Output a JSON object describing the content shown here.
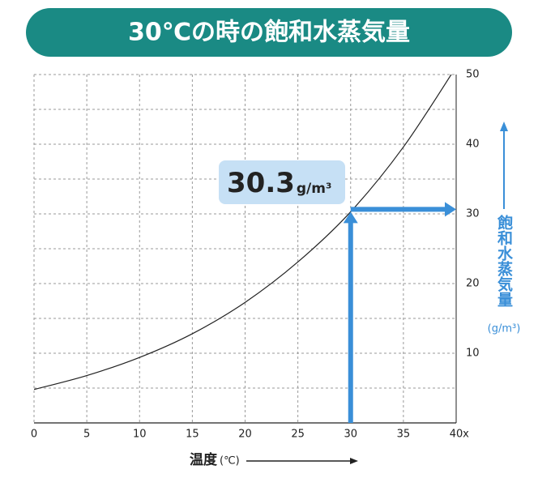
{
  "chart_data": {
    "type": "line",
    "title": "30℃の時の飽和水蒸気量",
    "x": [
      0,
      5,
      10,
      15,
      20,
      25,
      30,
      35,
      40
    ],
    "series": [
      {
        "name": "飽和水蒸気量",
        "color": "#222222",
        "values": [
          4.8,
          6.8,
          9.4,
          12.8,
          17.3,
          23.1,
          30.3,
          39.6,
          51.1
        ]
      }
    ],
    "xlim": [
      0,
      40
    ],
    "xticks": [
      0,
      5,
      10,
      15,
      20,
      25,
      30,
      35,
      40
    ],
    "x_axis_end_label": "x",
    "ylim": [
      0,
      50
    ],
    "yticks": [
      10,
      20,
      30,
      40,
      50
    ],
    "minor_yticks": [
      5,
      15,
      25,
      35,
      45
    ],
    "grid": true,
    "y_axis_side": "right",
    "x_label": "温度",
    "x_unit": "(℃)",
    "y_label": "飽和水蒸気量",
    "y_unit": "(g/m³)",
    "highlight": {
      "x": 30,
      "value": 30.3,
      "value_label": "30.3",
      "unit": "g/m³",
      "color": "#3a8fd8",
      "box_color": "#c6e0f5"
    }
  }
}
